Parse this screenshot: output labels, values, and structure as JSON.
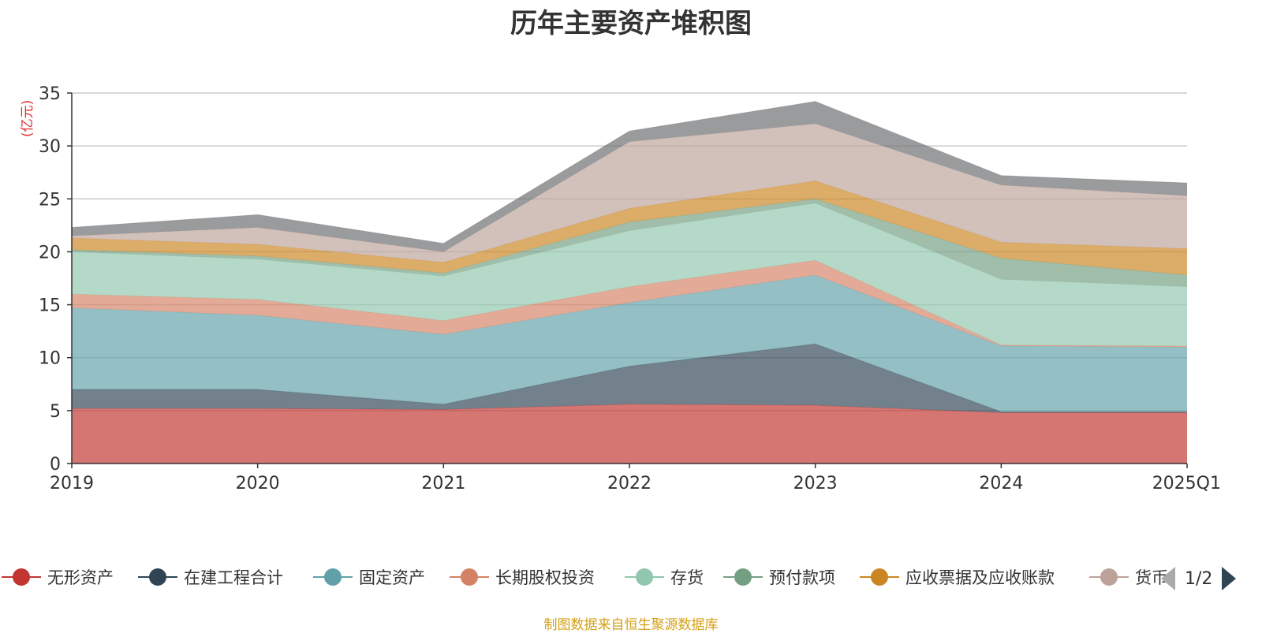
{
  "chart_data": {
    "type": "area",
    "stacked": true,
    "title": "历年主要资产堆积图",
    "unit_label": "(亿元)",
    "categories": [
      "2019",
      "2020",
      "2021",
      "2022",
      "2023",
      "2024",
      "2025Q1"
    ],
    "ylim": [
      0,
      35
    ],
    "yticks": [
      0,
      5,
      10,
      15,
      20,
      25,
      30,
      35
    ],
    "grid": true,
    "series": [
      {
        "name": "无形资产",
        "color": "#c23531",
        "values": [
          5.2,
          5.2,
          5.1,
          5.6,
          5.5,
          4.8,
          4.8
        ]
      },
      {
        "name": "在建工程合计",
        "color": "#2f4554",
        "values": [
          1.8,
          1.8,
          0.5,
          3.6,
          5.8,
          0.1,
          0.1
        ]
      },
      {
        "name": "固定资产",
        "color": "#61a0a8",
        "values": [
          7.7,
          7.0,
          6.6,
          6.0,
          6.5,
          6.2,
          6.1
        ]
      },
      {
        "name": "长期股权投资",
        "color": "#d48265",
        "values": [
          1.3,
          1.5,
          1.3,
          1.5,
          1.4,
          0.1,
          0.1
        ]
      },
      {
        "name": "存货",
        "color": "#91c7ae",
        "values": [
          4.0,
          3.8,
          4.2,
          5.3,
          5.4,
          6.2,
          5.6
        ]
      },
      {
        "name": "预付款项",
        "color": "#749f83",
        "values": [
          0.2,
          0.3,
          0.3,
          0.8,
          0.4,
          2.0,
          1.1
        ]
      },
      {
        "name": "应收票据及应收账款",
        "color": "#ca8622",
        "values": [
          1.1,
          1.1,
          1.0,
          1.3,
          1.7,
          1.5,
          2.5
        ]
      },
      {
        "name": "货币资金",
        "color": "#bda29a",
        "values": [
          0.2,
          1.6,
          1.0,
          6.3,
          5.4,
          5.4,
          5.0
        ]
      },
      {
        "name": "",
        "color": "#6e7074",
        "values": [
          0.8,
          1.2,
          0.8,
          1.0,
          2.1,
          0.9,
          1.2
        ]
      }
    ]
  },
  "legend": {
    "items": [
      "无形资产",
      "在建工程合计",
      "固定资产",
      "长期股权投资",
      "存货",
      "预付款项",
      "应收票据及应收账款",
      "货币资金"
    ],
    "page_text": "1/2"
  },
  "source_note": "制图数据来自恒生聚源数据库"
}
